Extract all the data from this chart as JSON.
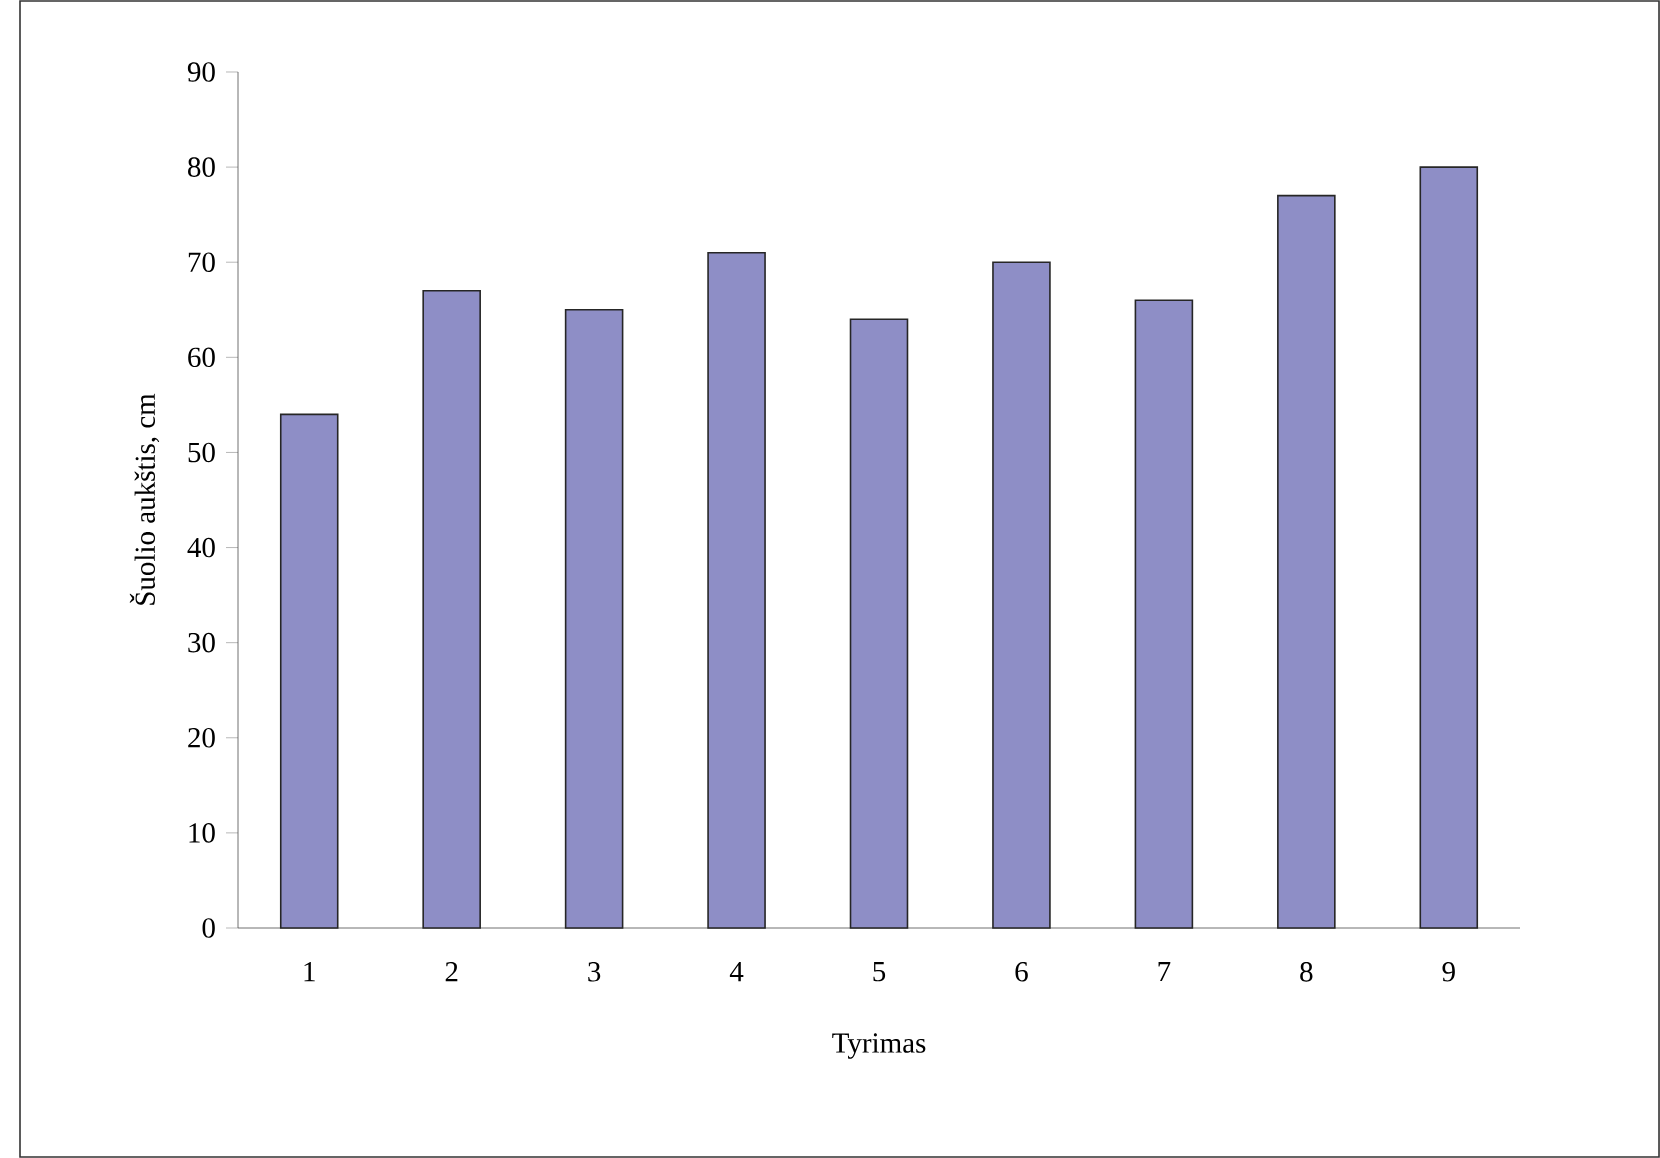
{
  "chart_data": {
    "type": "bar",
    "xlabel": "Tyrimas",
    "ylabel": "Šuolio aukštis, cm",
    "categories": [
      "1",
      "2",
      "3",
      "4",
      "5",
      "6",
      "7",
      "8",
      "9"
    ],
    "values": [
      54,
      67,
      65,
      71,
      64,
      70,
      66,
      77,
      80
    ],
    "color": "#8e8ec6",
    "ylim": [
      0,
      90
    ],
    "yticks": [
      0,
      10,
      20,
      30,
      40,
      50,
      60,
      70,
      80,
      90
    ],
    "grid": false
  }
}
